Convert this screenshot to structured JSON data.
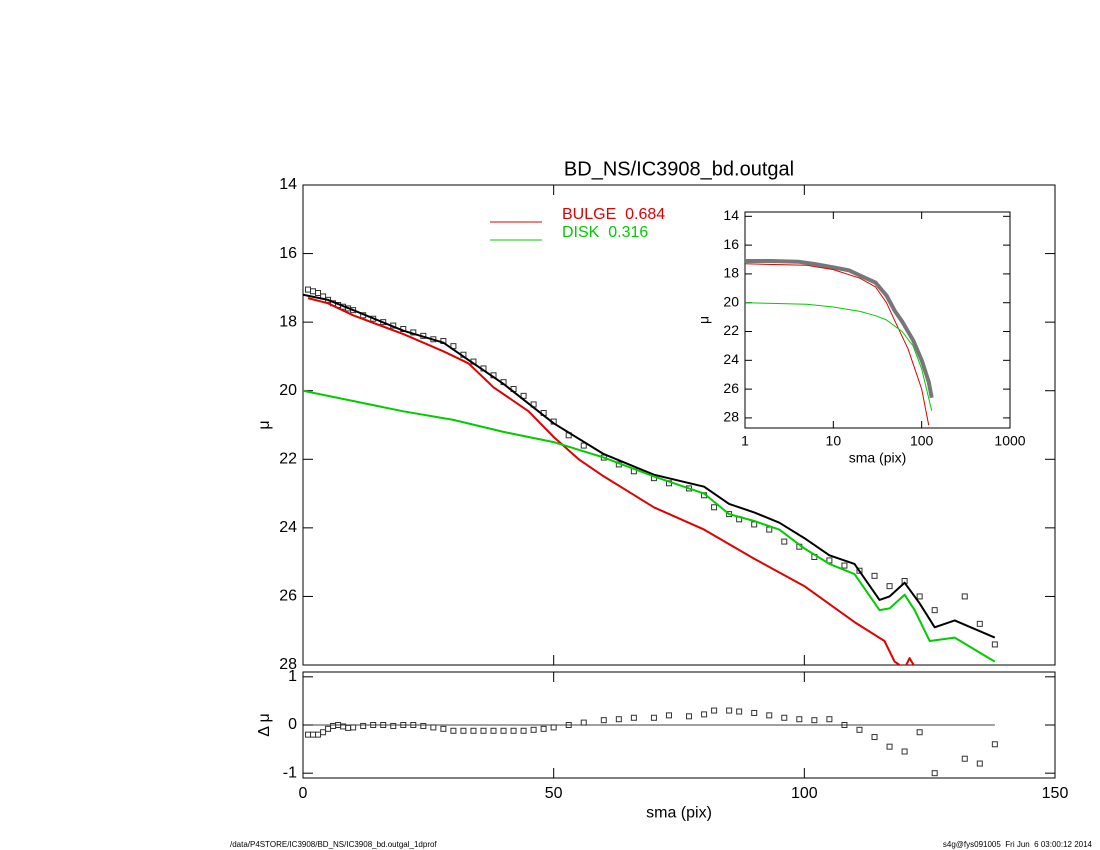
{
  "chart_data": [
    {
      "type": "profile",
      "title": "BD_NS/IC3908_bd.outgal",
      "ylabel": "μ",
      "xlim": [
        0,
        150
      ],
      "ylim": [
        28,
        14
      ],
      "xticks": [
        0,
        50,
        100,
        150
      ],
      "yticks": [
        14,
        16,
        18,
        20,
        22,
        24,
        26,
        28
      ],
      "xtick_labels": false,
      "legend": "top",
      "series": [
        {
          "mark": "square",
          "color": "#333333",
          "x": [
            1,
            2,
            3,
            4,
            5,
            6,
            7,
            8,
            9,
            10,
            12,
            14,
            16,
            18,
            20,
            22,
            24,
            26,
            28,
            30,
            32,
            34,
            36,
            38,
            40,
            42,
            44,
            46,
            48,
            50,
            53,
            56,
            60,
            63,
            66,
            70,
            73,
            77,
            80,
            82,
            85,
            87,
            90,
            93,
            96,
            99,
            102,
            105,
            108,
            111,
            114,
            117,
            120,
            123,
            126,
            132,
            135,
            138
          ],
          "values": [
            17.05,
            17.1,
            17.15,
            17.25,
            17.35,
            17.45,
            17.5,
            17.55,
            17.6,
            17.65,
            17.8,
            17.9,
            18.0,
            18.1,
            18.2,
            18.3,
            18.4,
            18.5,
            18.55,
            18.7,
            18.95,
            19.15,
            19.35,
            19.55,
            19.75,
            19.95,
            20.15,
            20.4,
            20.65,
            20.9,
            21.3,
            21.6,
            21.95,
            22.15,
            22.35,
            22.55,
            22.7,
            22.85,
            23.05,
            23.4,
            23.6,
            23.75,
            23.9,
            24.05,
            24.4,
            24.55,
            24.85,
            24.95,
            25.1,
            25.25,
            25.4,
            25.7,
            25.55,
            26.0,
            26.4,
            26.0,
            26.8,
            27.4
          ]
        },
        {
          "mark": "line",
          "color": "#000000",
          "x": [
            0,
            5,
            10,
            20,
            28,
            33,
            40,
            50,
            60,
            70,
            80,
            85,
            90,
            95,
            100,
            105,
            110,
            115,
            117,
            120,
            123,
            126,
            130,
            138
          ],
          "values": [
            17.2,
            17.35,
            17.65,
            18.25,
            18.6,
            19.1,
            19.8,
            20.95,
            21.85,
            22.45,
            22.8,
            23.3,
            23.55,
            23.85,
            24.3,
            24.8,
            25.05,
            26.1,
            26.0,
            25.6,
            26.2,
            26.9,
            26.7,
            27.2
          ]
        },
        {
          "mark": "line",
          "name": "BULGE  0.684",
          "color": "#e00000",
          "x": [
            1,
            5,
            10,
            20,
            28,
            33,
            38,
            45,
            50,
            55,
            60,
            70,
            80,
            90,
            100,
            110,
            116,
            118,
            120,
            121,
            123
          ],
          "values": [
            17.3,
            17.45,
            17.8,
            18.35,
            18.85,
            19.2,
            19.9,
            20.6,
            21.35,
            22.0,
            22.5,
            23.4,
            24.05,
            24.9,
            25.7,
            26.75,
            27.3,
            27.9,
            28.1,
            27.8,
            28.3
          ]
        },
        {
          "mark": "line",
          "name": "DISK  0.316",
          "color": "#00cc00",
          "x": [
            0,
            10,
            20,
            30,
            40,
            50,
            60,
            70,
            80,
            85,
            90,
            95,
            100,
            105,
            110,
            115,
            117,
            120,
            122,
            125,
            130,
            138
          ],
          "values": [
            20.0,
            20.3,
            20.6,
            20.85,
            21.2,
            21.5,
            21.95,
            22.5,
            23.0,
            23.6,
            23.8,
            24.05,
            24.6,
            25.05,
            25.35,
            26.4,
            26.35,
            25.95,
            26.4,
            27.3,
            27.2,
            27.9
          ]
        }
      ]
    },
    {
      "type": "residual",
      "xlabel": "sma (pix)",
      "ylabel": "Δ μ",
      "xlim": [
        0,
        150
      ],
      "ylim": [
        -1.1,
        1.1
      ],
      "xticks": [
        0,
        50,
        100,
        150
      ],
      "yticks": [
        -1,
        0,
        1
      ],
      "series": [
        {
          "mark": "square",
          "color": "#333333",
          "x": [
            1,
            2,
            3,
            4,
            5,
            6,
            7,
            8,
            9,
            10,
            12,
            14,
            16,
            18,
            20,
            22,
            24,
            26,
            28,
            30,
            32,
            34,
            36,
            38,
            40,
            42,
            44,
            46,
            48,
            50,
            53,
            56,
            60,
            63,
            66,
            70,
            73,
            77,
            80,
            82,
            85,
            87,
            90,
            93,
            96,
            99,
            102,
            105,
            108,
            111,
            114,
            117,
            120,
            123,
            126,
            132,
            135,
            138
          ],
          "values": [
            -0.2,
            -0.2,
            -0.2,
            -0.15,
            -0.08,
            -0.02,
            0.0,
            -0.03,
            -0.06,
            -0.05,
            -0.02,
            0.0,
            0.0,
            -0.02,
            0.0,
            0.0,
            -0.02,
            -0.05,
            -0.08,
            -0.12,
            -0.12,
            -0.12,
            -0.12,
            -0.12,
            -0.12,
            -0.12,
            -0.12,
            -0.1,
            -0.08,
            -0.05,
            0.0,
            0.05,
            0.1,
            0.12,
            0.15,
            0.15,
            0.2,
            0.18,
            0.22,
            0.3,
            0.3,
            0.28,
            0.25,
            0.2,
            0.15,
            0.12,
            0.1,
            0.12,
            0.0,
            -0.1,
            -0.25,
            -0.45,
            -0.55,
            -0.15,
            -1.0,
            -0.7,
            -0.8,
            -0.4
          ]
        }
      ]
    },
    {
      "type": "inset",
      "xlabel": "sma (pix)",
      "ylabel": "μ",
      "xlog": true,
      "xlim": [
        1,
        1000
      ],
      "ylim": [
        28.7,
        13.7
      ],
      "xticks": [
        1,
        10,
        100,
        1000
      ],
      "yticks": [
        14,
        16,
        18,
        20,
        22,
        24,
        26,
        28
      ],
      "series": [
        {
          "mark": "thick",
          "color": "#777777",
          "x": [
            1,
            2,
            4,
            6,
            10,
            15,
            20,
            30,
            40,
            50,
            60,
            80,
            100,
            120,
            130
          ],
          "values": [
            17.1,
            17.1,
            17.15,
            17.3,
            17.55,
            17.75,
            18.1,
            18.6,
            19.5,
            20.6,
            21.3,
            22.6,
            24.0,
            25.5,
            26.6
          ]
        },
        {
          "mark": "line",
          "color": "#e00000",
          "x": [
            1,
            5,
            10,
            20,
            30,
            40,
            50,
            70,
            100,
            120
          ],
          "values": [
            17.3,
            17.4,
            17.7,
            18.3,
            18.9,
            20.0,
            21.3,
            23.2,
            26.0,
            28.5
          ]
        },
        {
          "mark": "line",
          "color": "#00cc00",
          "x": [
            1,
            5,
            10,
            20,
            30,
            40,
            60,
            80,
            100,
            130
          ],
          "values": [
            20.0,
            20.1,
            20.3,
            20.6,
            20.9,
            21.2,
            22.0,
            23.0,
            24.6,
            27.5
          ]
        }
      ]
    }
  ],
  "footer": {
    "left": "/data/P4STORE/IC3908/BD_NS/IC3908_bd.outgal_1dprof",
    "right": "s4g@fys091005  Fri Jun  6 03:00:12 2014"
  }
}
